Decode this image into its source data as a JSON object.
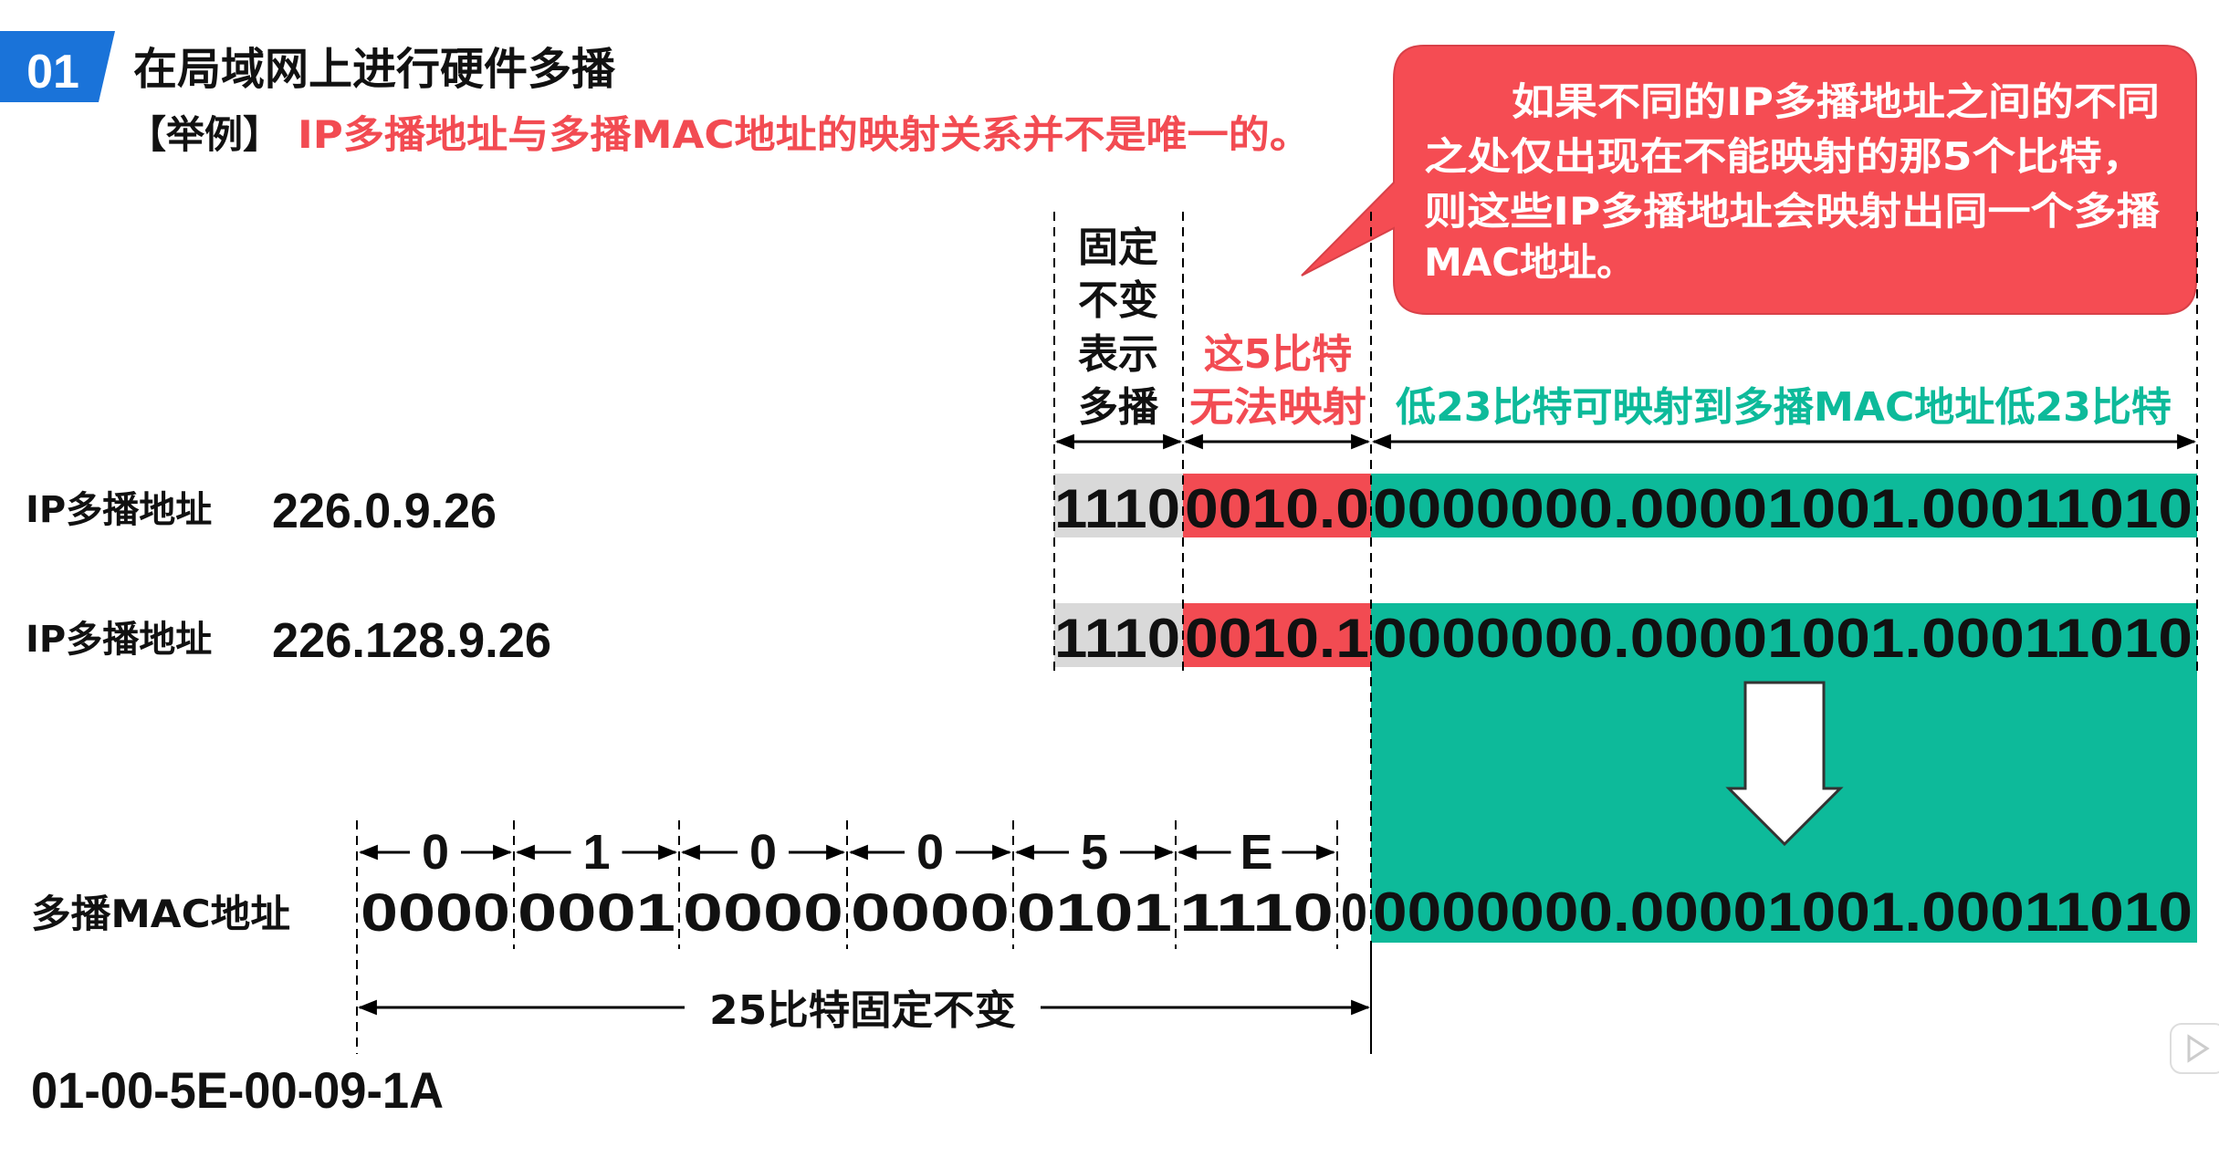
{
  "header": {
    "badge": "01",
    "title": "在局域网上进行硬件多播",
    "example_prefix": "【举例】",
    "example_text": "IP多播地址与多播MAC地址的映射关系并不是唯一的。"
  },
  "callout": {
    "lines": [
      "如果不同的IP多播地址之间的不同",
      "之处仅出现在不能映射的那5个比特，",
      "则这些IP多播地址会映射出同一个多播",
      "MAC地址。"
    ]
  },
  "column_labels": {
    "fixed": [
      "固定",
      "不变",
      "表示",
      "多播"
    ],
    "unmapped": [
      "这5比特",
      "无法映射"
    ],
    "low23": "低23比特可映射到多播MAC地址低23比特"
  },
  "ip_rows": [
    {
      "label": "IP多播地址",
      "address": "226.0.9.26",
      "bits_fixed": "1110",
      "bits_unmapped": "0010.0",
      "bits_low23": "0000000.00001001.00011010"
    },
    {
      "label": "IP多播地址",
      "address": "226.128.9.26",
      "bits_fixed": "1110",
      "bits_unmapped": "0010.1",
      "bits_low23": "0000000.00001001.00011010"
    }
  ],
  "mac_row": {
    "label": "多播MAC地址",
    "hex_digits": [
      "0",
      "1",
      "0",
      "0",
      "5",
      "E"
    ],
    "bit_groups": [
      "0000",
      "0001",
      "0000",
      "0000",
      "0101",
      "1110",
      "0"
    ],
    "bits_low23": "0000000.00001001.00011010",
    "fixed_span_label": "25比特固定不变",
    "result": "01-00-5E-00-09-1A"
  },
  "colors": {
    "badge_blue": "#1a73d9",
    "red": "#f24b52",
    "green": "#0dba9a",
    "gray": "#d9d9d9",
    "callout_red": "#f54c53"
  }
}
